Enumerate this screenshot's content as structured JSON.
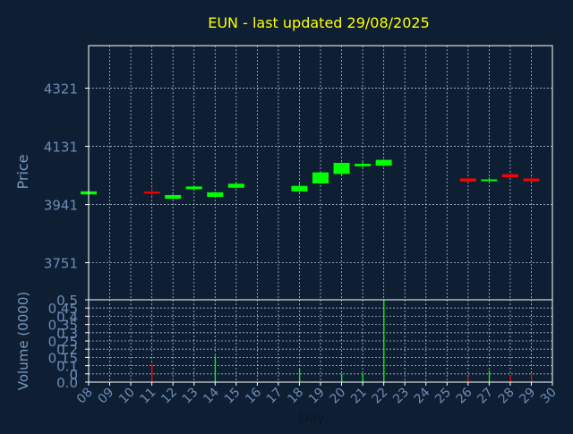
{
  "chart_data": [
    {
      "type": "candlestick",
      "title": "EUN - last updated 29/08/2025",
      "ylabel": "Price",
      "ylim": [
        3630,
        4460
      ],
      "yticks": [
        {
          "value": 3751,
          "label": "3751"
        },
        {
          "value": 3941,
          "label": "3941"
        },
        {
          "value": 4131,
          "label": "4131"
        },
        {
          "value": 4321,
          "label": "4321"
        }
      ],
      "xlim": [
        8,
        30
      ],
      "grid": true,
      "up_color": "#00ff00",
      "down_color": "#ff0000",
      "candles": [
        {
          "day": 8,
          "open": 3974,
          "close": 3984,
          "high": 3986,
          "low": 3972
        },
        {
          "day": 11,
          "open": 3983,
          "close": 3977,
          "high": 3999,
          "low": 3968
        },
        {
          "day": 12,
          "open": 3960,
          "close": 3972,
          "high": 3974,
          "low": 3958
        },
        {
          "day": 13,
          "open": 3991,
          "close": 4000,
          "high": 4002,
          "low": 3985
        },
        {
          "day": 14,
          "open": 3966,
          "close": 3981,
          "high": 3983,
          "low": 3964
        },
        {
          "day": 15,
          "open": 3996,
          "close": 4009,
          "high": 4016,
          "low": 3994
        },
        {
          "day": 18,
          "open": 3984,
          "close": 4002,
          "high": 4015,
          "low": 3982
        },
        {
          "day": 19,
          "open": 4010,
          "close": 4046,
          "high": 4050,
          "low": 4008
        },
        {
          "day": 20,
          "open": 4041,
          "close": 4077,
          "high": 4078,
          "low": 4039
        },
        {
          "day": 21,
          "open": 4066,
          "close": 4074,
          "high": 4081,
          "low": 4062
        },
        {
          "day": 22,
          "open": 4068,
          "close": 4087,
          "high": 4089,
          "low": 4066
        },
        {
          "day": 26,
          "open": 4026,
          "close": 4016,
          "high": 4028,
          "low": 4014
        },
        {
          "day": 27,
          "open": 4019,
          "close": 4023,
          "high": 4030,
          "low": 4017
        },
        {
          "day": 28,
          "open": 4040,
          "close": 4030,
          "high": 4042,
          "low": 4028
        },
        {
          "day": 29,
          "open": 4026,
          "close": 4017,
          "high": 4032,
          "low": 4015
        }
      ]
    },
    {
      "type": "bar",
      "xlabel": "Day",
      "ylabel": "Volume (0000)",
      "ylim": [
        0,
        0.5
      ],
      "yticks": [
        "0.0",
        "0",
        "0.1",
        "0.15",
        "0.2",
        "0.25",
        "0.3",
        "0.35",
        "0.4",
        "0.45",
        "0.5"
      ],
      "ytick_values": [
        0.0,
        0.05,
        0.1,
        0.15,
        0.2,
        0.25,
        0.3,
        0.35,
        0.4,
        0.45,
        0.5
      ],
      "xticks": [
        "08",
        "09",
        "10",
        "11",
        "12",
        "13",
        "14",
        "15",
        "16",
        "17",
        "18",
        "19",
        "20",
        "21",
        "22",
        "23",
        "24",
        "25",
        "26",
        "27",
        "28",
        "29",
        "30"
      ],
      "xlim": [
        8,
        30
      ],
      "grid": true,
      "bars": [
        {
          "day": 11,
          "value": 0.11,
          "color": "#ff0000"
        },
        {
          "day": 14,
          "value": 0.16,
          "color": "#00ff00"
        },
        {
          "day": 18,
          "value": 0.08,
          "color": "#00ff00"
        },
        {
          "day": 20,
          "value": 0.05,
          "color": "#00ff00"
        },
        {
          "day": 21,
          "value": 0.05,
          "color": "#00ff00"
        },
        {
          "day": 22,
          "value": 0.5,
          "color": "#00ff00"
        },
        {
          "day": 26,
          "value": 0.03,
          "color": "#ff0000"
        },
        {
          "day": 27,
          "value": 0.07,
          "color": "#00ff00"
        },
        {
          "day": 28,
          "value": 0.04,
          "color": "#ff0000"
        },
        {
          "day": 29,
          "value": 0.05,
          "color": "#ff0000"
        }
      ]
    }
  ],
  "colors": {
    "background": "#0f1f33",
    "title": "#ffff00",
    "axis_text": "#7799bb",
    "tick_text": "#6b8db7",
    "grid": "#c8d8f0",
    "frame": "#ffffff"
  }
}
